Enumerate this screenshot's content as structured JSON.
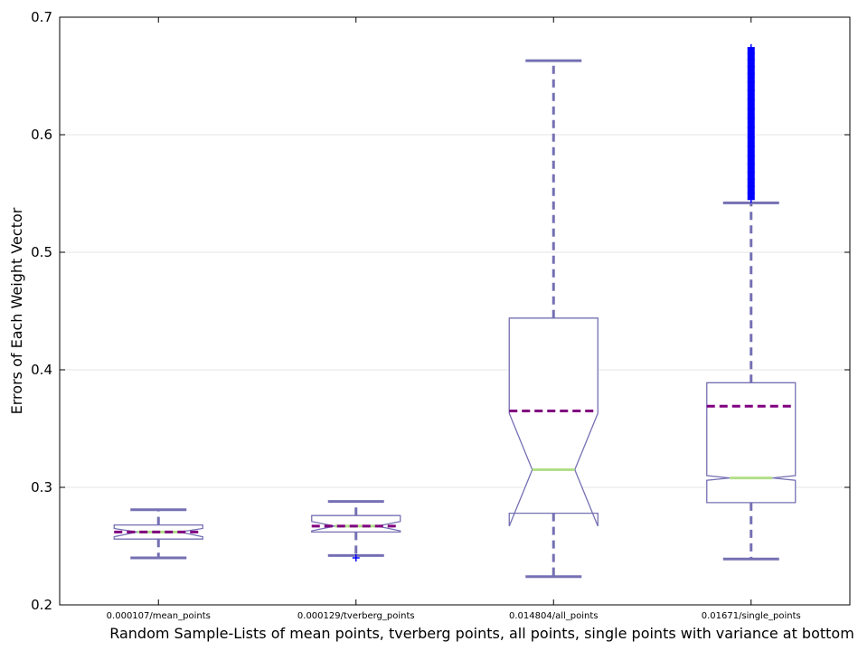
{
  "chart_data": {
    "type": "boxplot",
    "xlabel": "Random Sample-Lists of  mean points, tverberg points, all points, single points with variance at bottom",
    "ylabel": "Errors of Each Weight Vector",
    "ylim": [
      0.2,
      0.7
    ],
    "yticks": [
      "0.2",
      "0.3",
      "0.4",
      "0.5",
      "0.6",
      "0.7"
    ],
    "grid": "horizontal",
    "notched": true,
    "colors": {
      "box": "#7570b3",
      "median": "#b2df8a",
      "mean": "#800080",
      "whisker": "#7570b3",
      "flier": "#0000ff"
    },
    "categories": [
      "0.000107/mean_points",
      "0.000129/tverberg_points",
      "0.014804/all_points",
      "0.01671/single_points"
    ],
    "boxes": [
      {
        "whisker_low": 0.24,
        "q1": 0.256,
        "median": 0.262,
        "q3": 0.268,
        "whisker_high": 0.281,
        "mean": 0.262,
        "notch_low": 0.258,
        "notch_high": 0.265,
        "fliers": []
      },
      {
        "whisker_low": 0.242,
        "q1": 0.262,
        "median": 0.267,
        "q3": 0.276,
        "whisker_high": 0.288,
        "mean": 0.267,
        "notch_low": 0.263,
        "notch_high": 0.271,
        "fliers": [
          0.24
        ]
      },
      {
        "whisker_low": 0.224,
        "q1": 0.278,
        "median": 0.315,
        "q3": 0.444,
        "whisker_high": 0.663,
        "mean": 0.365,
        "notch_low": 0.267,
        "notch_high": 0.363,
        "fliers": []
      },
      {
        "whisker_low": 0.239,
        "q1": 0.287,
        "median": 0.308,
        "q3": 0.389,
        "whisker_high": 0.542,
        "mean": 0.369,
        "notch_low": 0.306,
        "notch_high": 0.31,
        "fliers": [
          0.545,
          0.55,
          0.556,
          0.562,
          0.568,
          0.575,
          0.582,
          0.59,
          0.598,
          0.606,
          0.614,
          0.622,
          0.63,
          0.638,
          0.645,
          0.652,
          0.658,
          0.664,
          0.669,
          0.674
        ]
      }
    ]
  }
}
